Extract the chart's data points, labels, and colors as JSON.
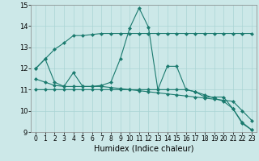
{
  "xlabel": "Humidex (Indice chaleur)",
  "background_color": "#cce8e8",
  "line_color": "#1a7a6e",
  "xlim": [
    -0.5,
    23.5
  ],
  "ylim": [
    9,
    15
  ],
  "xticks": [
    0,
    1,
    2,
    3,
    4,
    5,
    6,
    7,
    8,
    9,
    10,
    11,
    12,
    13,
    14,
    15,
    16,
    17,
    18,
    19,
    20,
    21,
    22,
    23
  ],
  "yticks": [
    9,
    10,
    11,
    12,
    13,
    14,
    15
  ],
  "series1_x": [
    0,
    1,
    2,
    3,
    4,
    5,
    6,
    7,
    8,
    9,
    10,
    11,
    12,
    13,
    14,
    15,
    16,
    17,
    18,
    19,
    20,
    21,
    22,
    23
  ],
  "series1_y": [
    12.0,
    12.45,
    11.35,
    11.15,
    11.8,
    11.15,
    11.15,
    11.2,
    11.35,
    12.45,
    13.9,
    14.85,
    13.95,
    11.0,
    12.1,
    12.1,
    11.0,
    10.9,
    10.65,
    10.65,
    10.65,
    10.1,
    9.4,
    9.1
  ],
  "series2_x": [
    0,
    1,
    2,
    3,
    4,
    5,
    6,
    7,
    8,
    9,
    10,
    11,
    12,
    13,
    14,
    15,
    16,
    17,
    18,
    19,
    20,
    21,
    22,
    23
  ],
  "series2_y": [
    12.0,
    12.45,
    12.9,
    13.2,
    13.55,
    13.55,
    13.6,
    13.65,
    13.65,
    13.65,
    13.65,
    13.65,
    13.65,
    13.65,
    13.65,
    13.65,
    13.65,
    13.65,
    13.65,
    13.65,
    13.65,
    13.65,
    13.65,
    13.65
  ],
  "series3_x": [
    0,
    1,
    2,
    3,
    4,
    5,
    6,
    7,
    8,
    9,
    10,
    11,
    12,
    13,
    14,
    15,
    16,
    17,
    18,
    19,
    20,
    21,
    22,
    23
  ],
  "series3_y": [
    11.0,
    11.0,
    11.0,
    11.0,
    11.0,
    11.0,
    11.0,
    11.0,
    11.0,
    11.0,
    11.0,
    11.0,
    11.0,
    11.0,
    11.0,
    11.0,
    11.0,
    10.9,
    10.75,
    10.6,
    10.45,
    10.1,
    9.45,
    9.1
  ],
  "series4_x": [
    0,
    1,
    2,
    3,
    4,
    5,
    6,
    7,
    8,
    9,
    10,
    11,
    12,
    13,
    14,
    15,
    16,
    17,
    18,
    19,
    20,
    21,
    22,
    23
  ],
  "series4_y": [
    11.5,
    11.35,
    11.2,
    11.15,
    11.15,
    11.15,
    11.15,
    11.15,
    11.1,
    11.05,
    11.0,
    10.95,
    10.9,
    10.85,
    10.8,
    10.75,
    10.7,
    10.65,
    10.6,
    10.55,
    10.5,
    10.45,
    10.0,
    9.55
  ],
  "grid_color": "#aad4d4",
  "marker": "D",
  "markersize": 2.5
}
